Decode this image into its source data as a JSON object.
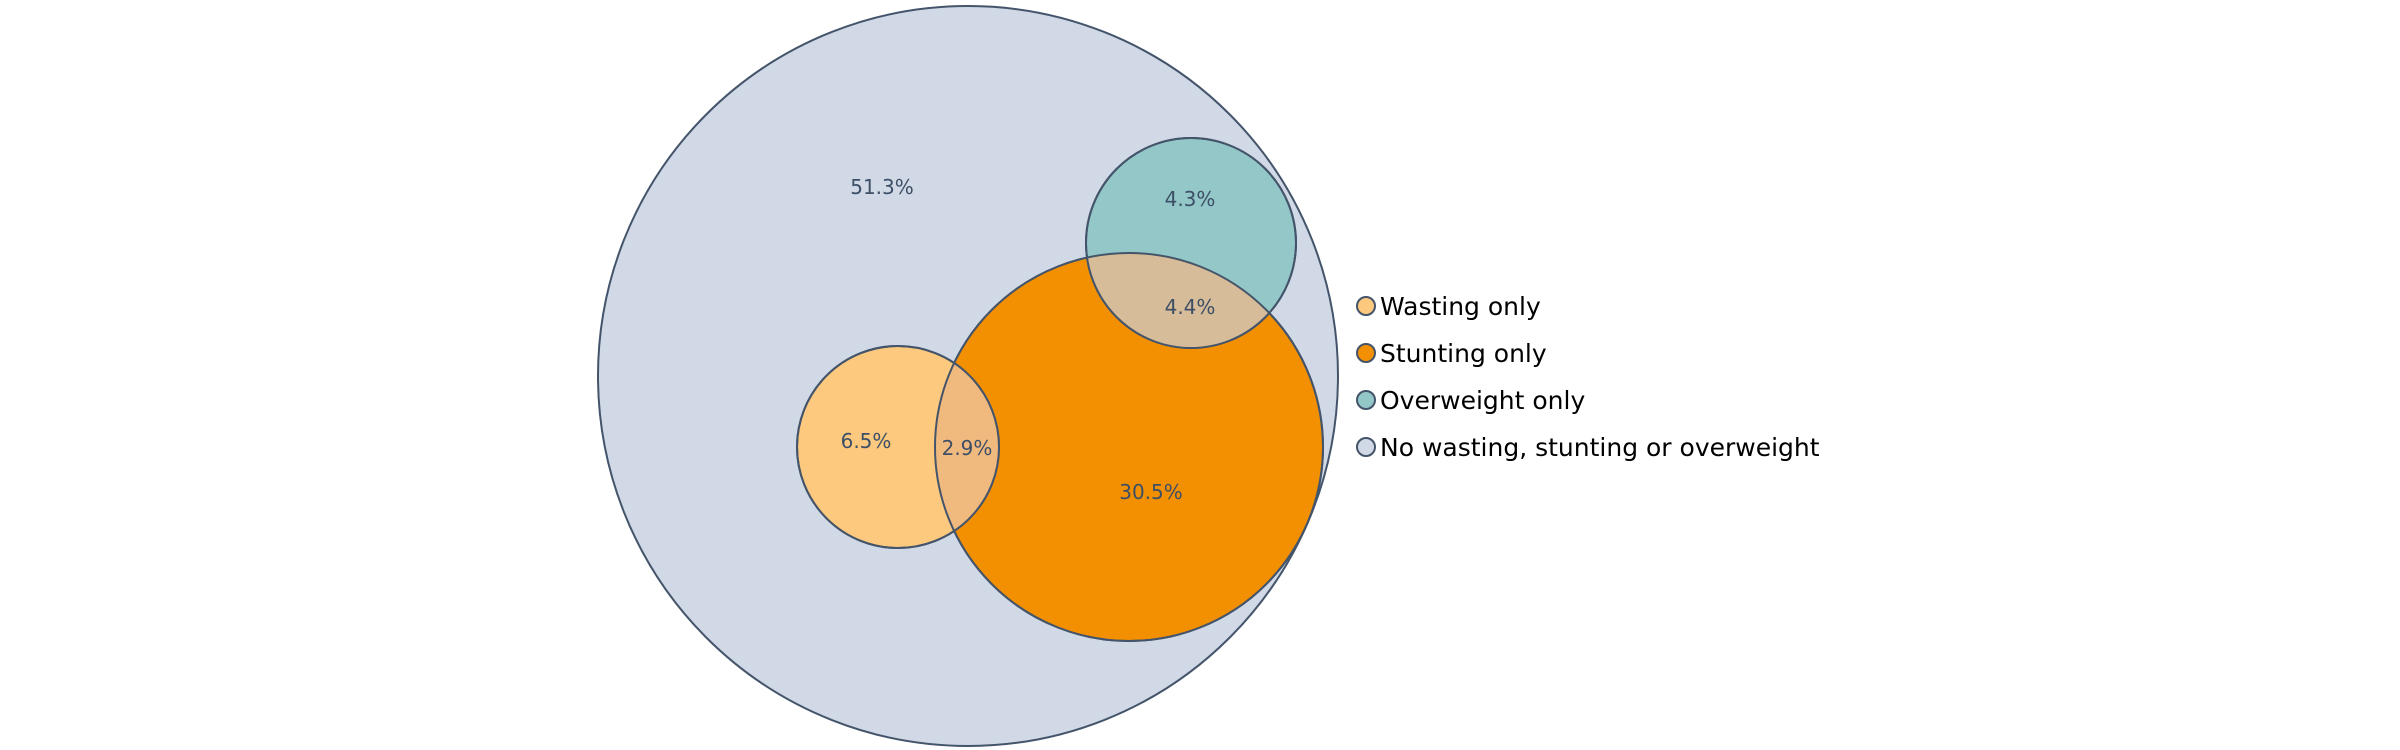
{
  "chart_data": {
    "type": "venn",
    "title": "",
    "stroke_color": "#44546a",
    "sets": [
      {
        "key": "wasting",
        "name": "Wasting only",
        "color": "#fdc97e"
      },
      {
        "key": "stunting",
        "name": "Stunting only",
        "color": "#f39001"
      },
      {
        "key": "overweight",
        "name": "Overweight only",
        "color": "#93c7c8"
      },
      {
        "key": "none",
        "name": "No wasting, stunting or overweight",
        "color": "#d0d9e5"
      }
    ],
    "regions": [
      {
        "id": "none",
        "sets": [
          "none"
        ],
        "value": "51.3%"
      },
      {
        "id": "overweight",
        "sets": [
          "overweight"
        ],
        "value": "4.3%"
      },
      {
        "id": "stunting-overweight",
        "sets": [
          "stunting",
          "overweight"
        ],
        "value": "4.4%",
        "color": "#d6bc98"
      },
      {
        "id": "wasting",
        "sets": [
          "wasting"
        ],
        "value": "6.5%"
      },
      {
        "id": "wasting-stunting",
        "sets": [
          "wasting",
          "stunting"
        ],
        "value": "2.9%",
        "color": "#f0b97e"
      },
      {
        "id": "stunting",
        "sets": [
          "stunting"
        ],
        "value": "30.5%"
      }
    ],
    "legend_position": "right"
  }
}
